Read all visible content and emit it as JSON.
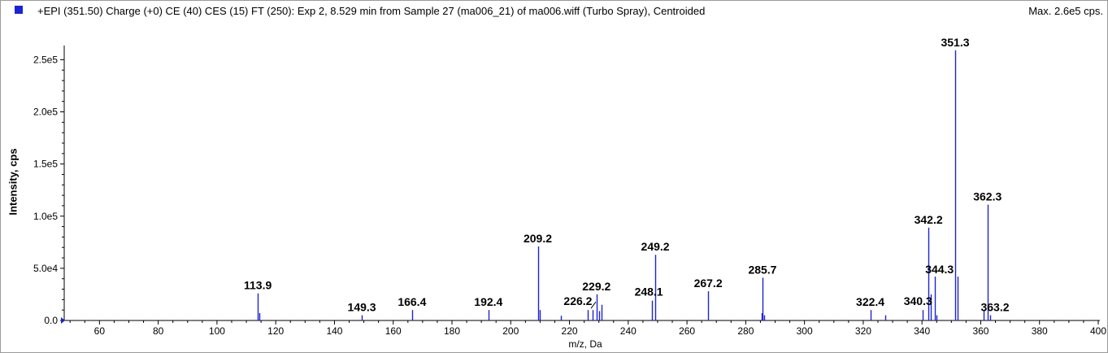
{
  "header": {
    "title": "+EPI (351.50) Charge (+0) CE (40) CES (15) FT (250): Exp 2, 8.529 min from Sample 27 (ma006_21) of ma006.wiff (Turbo Spray), Centroided",
    "max_label": "Max. 2.6e5 cps."
  },
  "colors": {
    "series": "#1c24d2",
    "axis": "#000000"
  },
  "chart_data": {
    "type": "bar",
    "xlabel": "m/z, Da",
    "ylabel": "Intensity, cps",
    "xlim": [
      48,
      400
    ],
    "ylim": [
      0,
      262000
    ],
    "x_ticks": [
      60,
      80,
      100,
      120,
      140,
      160,
      180,
      200,
      220,
      240,
      260,
      280,
      300,
      320,
      340,
      360,
      380,
      400
    ],
    "x_tick_labels": [
      "60",
      "80",
      "100",
      "120",
      "140",
      "160",
      "180",
      "200",
      "220",
      "240",
      "260",
      "280",
      "300",
      "320",
      "340",
      "360",
      "380",
      "400"
    ],
    "y_ticks": [
      0,
      50000,
      100000,
      150000,
      200000,
      250000
    ],
    "y_tick_labels": [
      "0.0",
      "5.0e4",
      "1.0e5",
      "1.5e5",
      "2.0e5",
      "2.5e5"
    ],
    "peaks": [
      {
        "x": 113.9,
        "y": 26000
      },
      {
        "x": 114.3,
        "y": 7000
      },
      {
        "x": 149.3,
        "y": 5000
      },
      {
        "x": 166.4,
        "y": 10000
      },
      {
        "x": 192.4,
        "y": 10000
      },
      {
        "x": 209.2,
        "y": 71000
      },
      {
        "x": 210.0,
        "y": 10000
      },
      {
        "x": 217.0,
        "y": 4500
      },
      {
        "x": 226.2,
        "y": 10000
      },
      {
        "x": 228.0,
        "y": 10000
      },
      {
        "x": 229.2,
        "y": 25000
      },
      {
        "x": 230.0,
        "y": 9000
      },
      {
        "x": 231.0,
        "y": 15000
      },
      {
        "x": 248.1,
        "y": 19000
      },
      {
        "x": 249.2,
        "y": 63000
      },
      {
        "x": 267.2,
        "y": 28000
      },
      {
        "x": 285.4,
        "y": 7000
      },
      {
        "x": 285.7,
        "y": 41000
      },
      {
        "x": 286.4,
        "y": 5000
      },
      {
        "x": 322.4,
        "y": 10000
      },
      {
        "x": 327.5,
        "y": 5000
      },
      {
        "x": 340.3,
        "y": 10000
      },
      {
        "x": 342.2,
        "y": 89000
      },
      {
        "x": 343.0,
        "y": 25000
      },
      {
        "x": 344.3,
        "y": 42000
      },
      {
        "x": 344.8,
        "y": 5000
      },
      {
        "x": 351.3,
        "y": 259000
      },
      {
        "x": 352.0,
        "y": 42000
      },
      {
        "x": 361.0,
        "y": 10000
      },
      {
        "x": 362.3,
        "y": 111000
      },
      {
        "x": 363.2,
        "y": 5000
      }
    ],
    "labels": [
      {
        "x": 113.9,
        "y": 26000,
        "text": "113.9"
      },
      {
        "x": 149.3,
        "y": 5000,
        "text": "149.3"
      },
      {
        "x": 166.4,
        "y": 10000,
        "text": "166.4"
      },
      {
        "x": 192.4,
        "y": 10000,
        "text": "192.4"
      },
      {
        "x": 209.2,
        "y": 71000,
        "text": "209.2"
      },
      {
        "x": 226.2,
        "y": 10000,
        "text": "226.2"
      },
      {
        "x": 229.2,
        "y": 25000,
        "text": "229.2"
      },
      {
        "x": 248.1,
        "y": 19000,
        "text": "248.1"
      },
      {
        "x": 249.2,
        "y": 63000,
        "text": "249.2"
      },
      {
        "x": 267.2,
        "y": 28000,
        "text": "267.2"
      },
      {
        "x": 285.7,
        "y": 41000,
        "text": "285.7"
      },
      {
        "x": 322.4,
        "y": 10000,
        "text": "322.4"
      },
      {
        "x": 340.3,
        "y": 10000,
        "text": "340.3"
      },
      {
        "x": 342.2,
        "y": 89000,
        "text": "342.2"
      },
      {
        "x": 344.3,
        "y": 42000,
        "text": "344.3"
      },
      {
        "x": 351.3,
        "y": 259000,
        "text": "351.3"
      },
      {
        "x": 362.3,
        "y": 111000,
        "text": "362.3"
      },
      {
        "x": 363.2,
        "y": 5000,
        "text": "363.2"
      }
    ]
  }
}
